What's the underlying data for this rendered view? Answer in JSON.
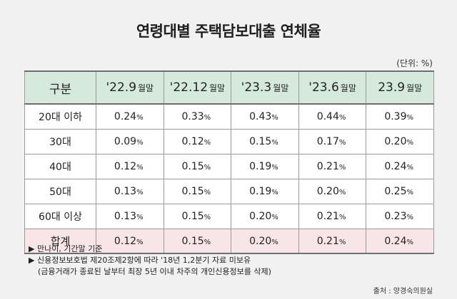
{
  "title": "연령대별 주택담보대출 연체율",
  "unit": "(단위: %)",
  "table": {
    "header": {
      "category": "구분",
      "periods": [
        {
          "label": "'22.9",
          "suffix": "월말"
        },
        {
          "label": "'22.12",
          "suffix": "월말"
        },
        {
          "label": "'23.3",
          "suffix": "월말"
        },
        {
          "label": "'23.6",
          "suffix": "월말"
        },
        {
          "label": "23.9",
          "suffix": "월말"
        }
      ]
    },
    "rows": [
      {
        "category": "20대 이하",
        "values": [
          "0.24",
          "0.33",
          "0.43",
          "0.44",
          "0.39"
        ]
      },
      {
        "category": "30대",
        "values": [
          "0.09",
          "0.12",
          "0.15",
          "0.17",
          "0.20"
        ]
      },
      {
        "category": "40대",
        "values": [
          "0.12",
          "0.15",
          "0.19",
          "0.21",
          "0.24"
        ]
      },
      {
        "category": "50대",
        "values": [
          "0.13",
          "0.15",
          "0.19",
          "0.20",
          "0.25"
        ]
      },
      {
        "category": "60대 이상",
        "values": [
          "0.13",
          "0.15",
          "0.20",
          "0.21",
          "0.23"
        ]
      },
      {
        "category": "합계",
        "values": [
          "0.12",
          "0.15",
          "0.20",
          "0.21",
          "0.24"
        ]
      }
    ],
    "percent_sign": "%"
  },
  "notes": [
    "▶ 만나이, 기간말 기준",
    "▶ 신용정보보호법 제20조제2항에 따라 '18년 1,2분기 자료 미보유",
    "(금융거래가 종료된 날부터 최장 5년 이내 차주의 개인신용정보를 삭제)"
  ],
  "source": "출처 : 양경숙의원실",
  "colors": {
    "header_bg": "#d5eadc",
    "total_bg": "#f7e5e7",
    "background": "#f1f1f1"
  }
}
